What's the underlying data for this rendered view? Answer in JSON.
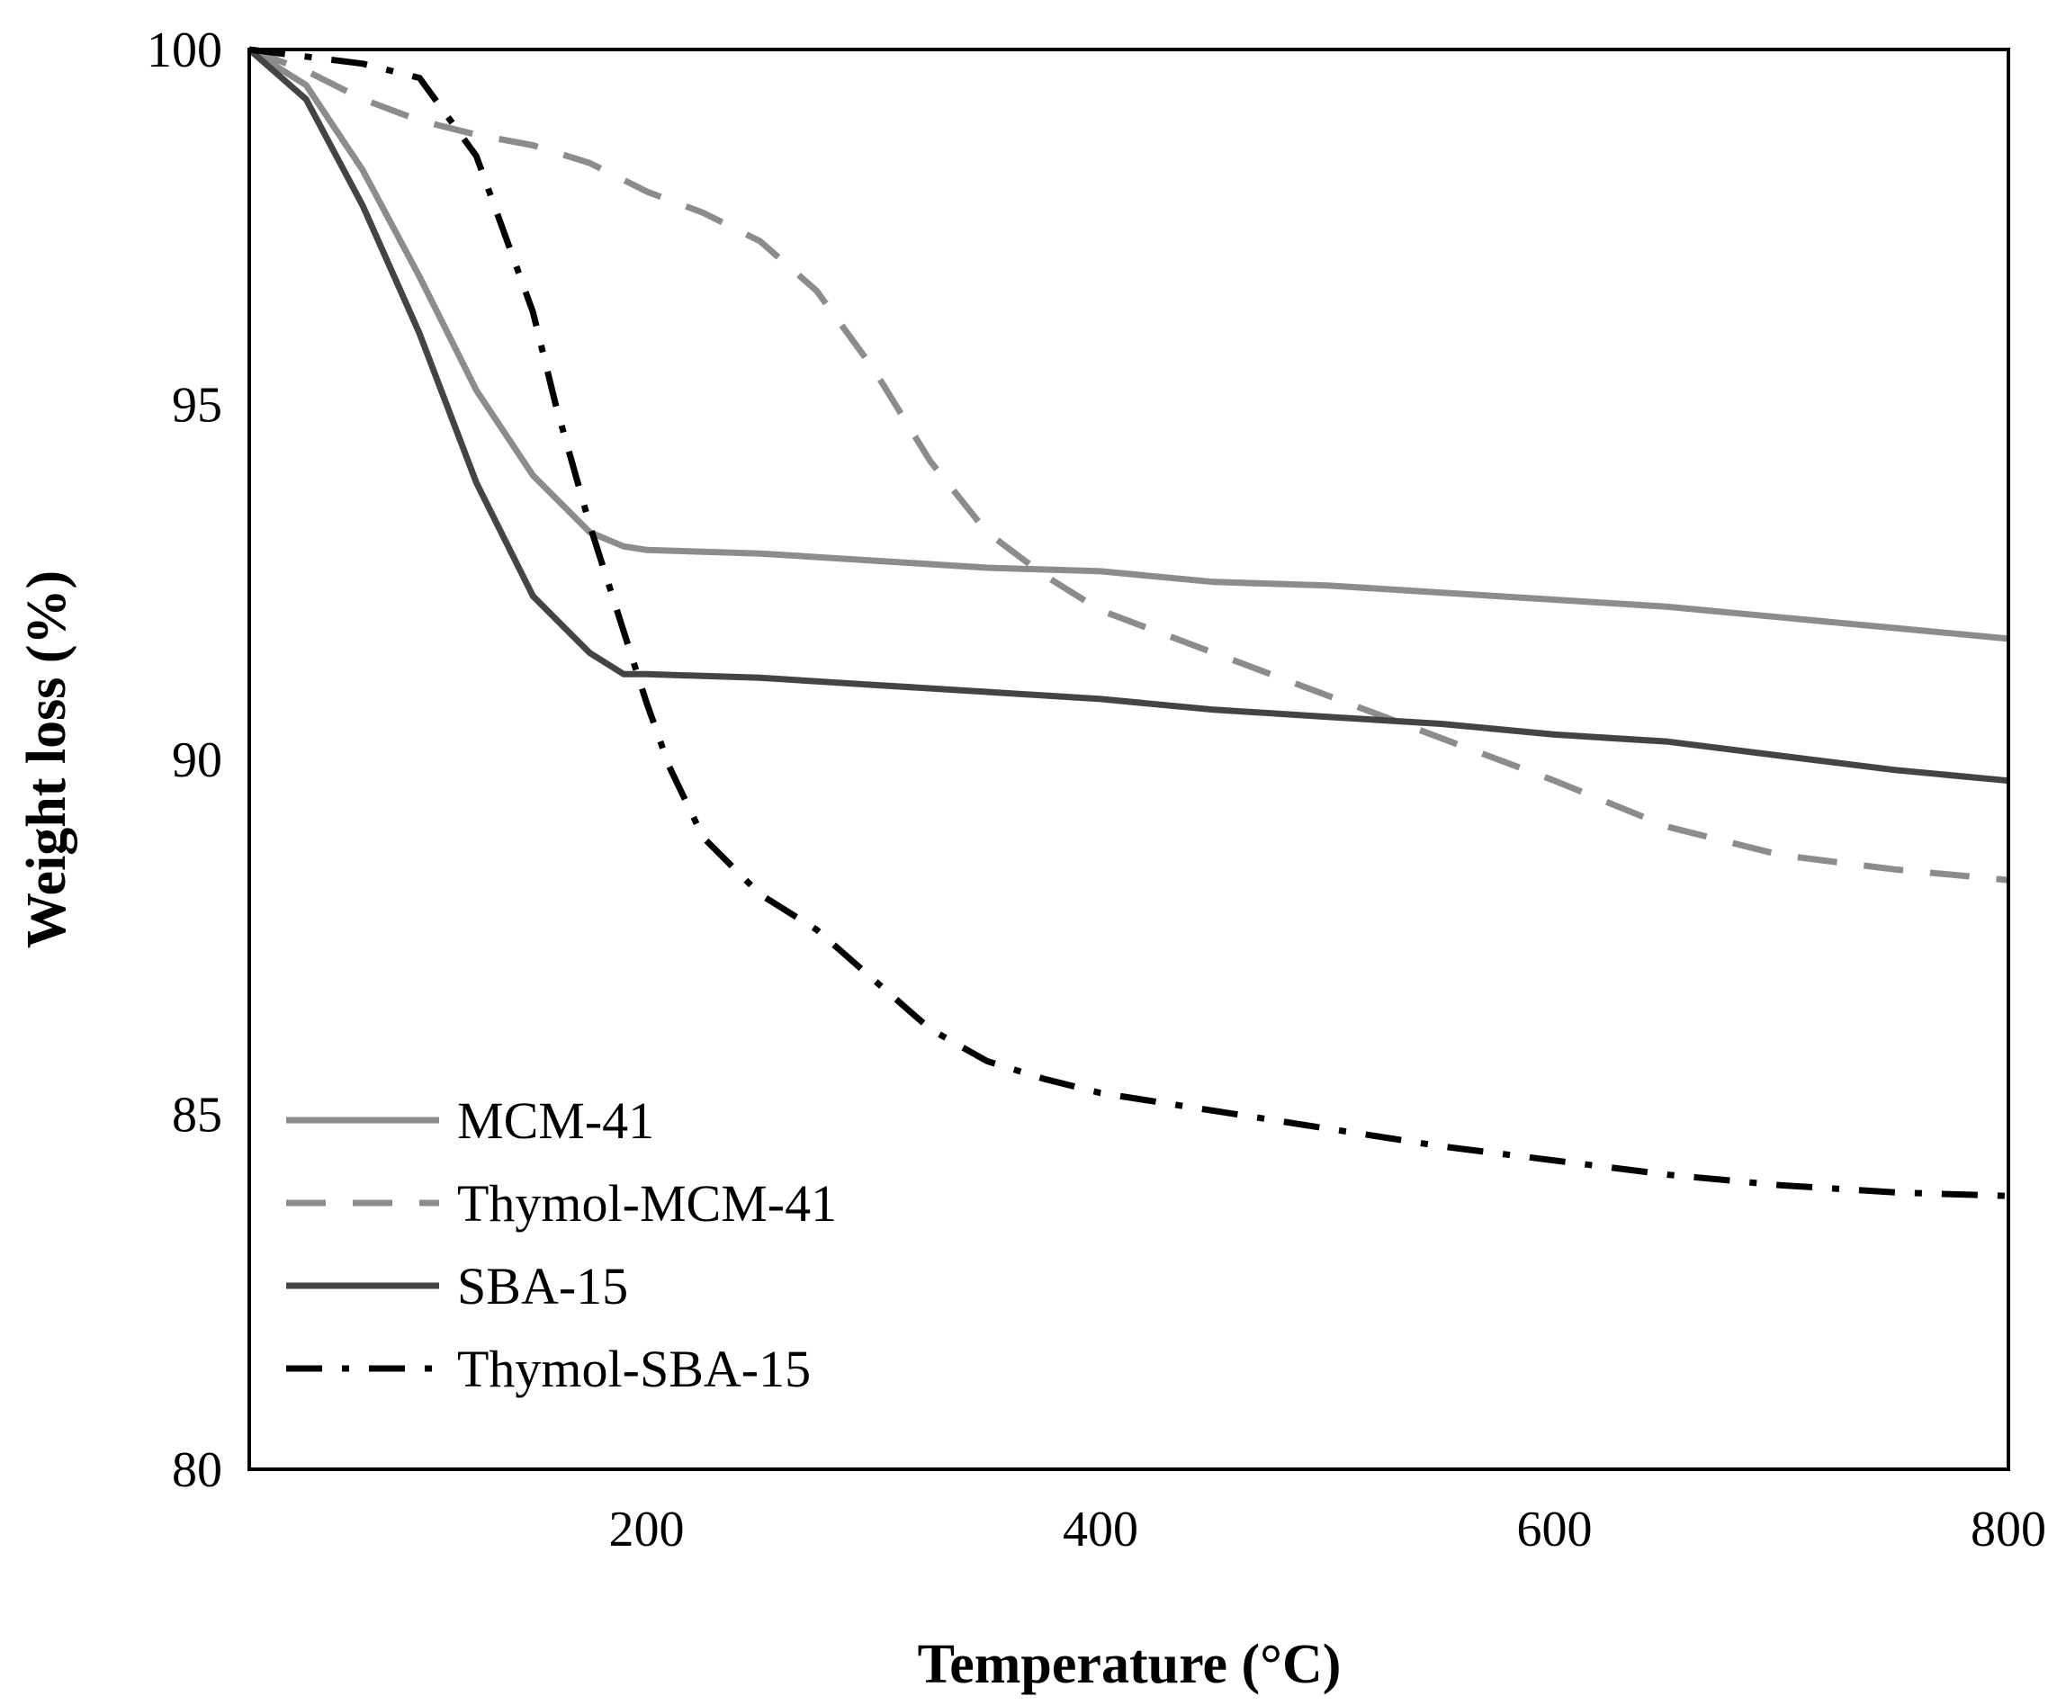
{
  "chart_data": {
    "type": "line",
    "title": "",
    "xlabel": "Temperature (°C)",
    "ylabel": "Weight loss (%)",
    "xlim": [
      25,
      800
    ],
    "ylim": [
      80,
      100
    ],
    "xticks": [
      200,
      400,
      600,
      800
    ],
    "yticks": [
      80,
      85,
      90,
      95,
      100
    ],
    "grid": false,
    "legend_position": "bottom-left",
    "series": [
      {
        "name": "MCM-41",
        "color": "#8c8c8c",
        "style": "solid",
        "x": [
          25,
          50,
          75,
          100,
          125,
          150,
          175,
          190,
          200,
          250,
          300,
          350,
          400,
          450,
          500,
          550,
          600,
          650,
          700,
          750,
          800
        ],
        "y": [
          100,
          99.5,
          98.3,
          96.8,
          95.2,
          94.0,
          93.2,
          93.0,
          92.95,
          92.9,
          92.8,
          92.7,
          92.65,
          92.5,
          92.45,
          92.35,
          92.25,
          92.15,
          92.0,
          91.85,
          91.7
        ]
      },
      {
        "name": "Thymol-MCM-41",
        "color": "#8c8c8c",
        "style": "dashed",
        "x": [
          25,
          50,
          75,
          100,
          125,
          150,
          175,
          200,
          225,
          250,
          275,
          300,
          325,
          350,
          375,
          400,
          450,
          500,
          550,
          600,
          650,
          700,
          750,
          800
        ],
        "y": [
          100,
          99.7,
          99.3,
          99.0,
          98.8,
          98.65,
          98.4,
          98.0,
          97.7,
          97.3,
          96.6,
          95.5,
          94.2,
          93.2,
          92.6,
          92.1,
          91.5,
          90.9,
          90.3,
          89.7,
          89.05,
          88.65,
          88.45,
          88.3
        ]
      },
      {
        "name": "SBA-15",
        "color": "#444444",
        "style": "solid",
        "x": [
          25,
          50,
          75,
          100,
          125,
          150,
          175,
          190,
          200,
          250,
          300,
          350,
          400,
          450,
          500,
          550,
          600,
          650,
          700,
          750,
          800
        ],
        "y": [
          100,
          99.3,
          97.8,
          96.0,
          93.9,
          92.3,
          91.5,
          91.2,
          91.2,
          91.15,
          91.05,
          90.95,
          90.85,
          90.7,
          90.6,
          90.5,
          90.35,
          90.25,
          90.05,
          89.85,
          89.7
        ]
      },
      {
        "name": "Thymol-SBA-15",
        "color": "#000000",
        "style": "dashdot",
        "x": [
          25,
          50,
          75,
          100,
          125,
          150,
          160,
          175,
          190,
          200,
          210,
          225,
          250,
          275,
          300,
          325,
          350,
          375,
          400,
          450,
          500,
          550,
          600,
          650,
          700,
          750,
          800
        ],
        "y": [
          100,
          99.9,
          99.8,
          99.6,
          98.5,
          96.3,
          95.0,
          93.3,
          91.8,
          90.8,
          89.9,
          88.9,
          88.1,
          87.6,
          86.9,
          86.2,
          85.75,
          85.5,
          85.3,
          85.05,
          84.8,
          84.55,
          84.35,
          84.15,
          84.0,
          83.9,
          83.85
        ]
      }
    ]
  }
}
